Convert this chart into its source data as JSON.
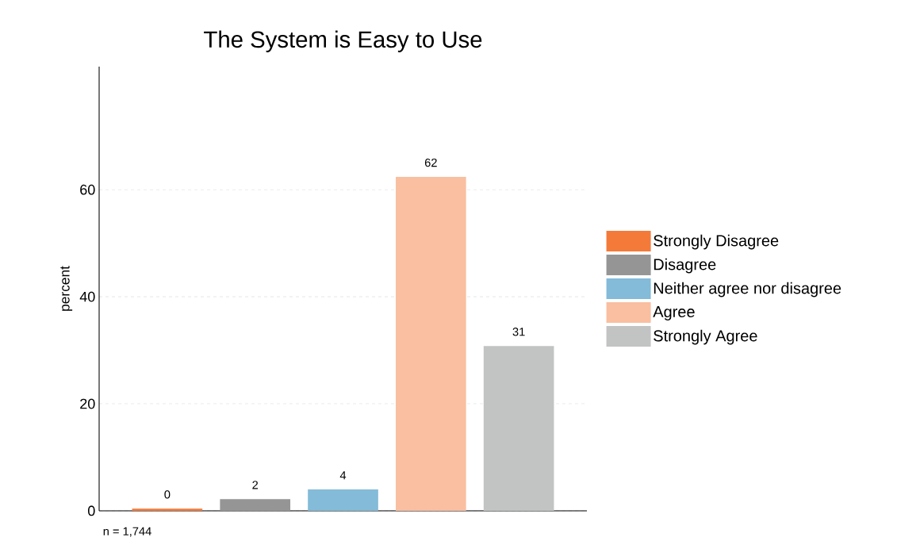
{
  "chart_data": {
    "type": "bar",
    "title": "The System is Easy to Use",
    "ylabel": "percent",
    "categories": [
      null,
      null,
      null,
      null,
      null
    ],
    "series": [
      {
        "name": "Strongly Disagree",
        "color": "#f47a3a",
        "values": [
          0.4,
          null,
          null,
          null,
          null
        ],
        "value_labels": [
          "0",
          null,
          null,
          null,
          null
        ]
      },
      {
        "name": "Disagree",
        "color": "#959596",
        "values": [
          null,
          2.2,
          null,
          null,
          null
        ],
        "value_labels": [
          null,
          "2",
          null,
          null,
          null
        ]
      },
      {
        "name": "Neither agree nor disagree",
        "color": "#83bbd8",
        "values": [
          null,
          null,
          4,
          null,
          null
        ],
        "value_labels": [
          null,
          null,
          "4",
          null,
          null
        ]
      },
      {
        "name": "Agree",
        "color": "#f9bfa0",
        "values": [
          null,
          null,
          null,
          62.4,
          null
        ],
        "value_labels": [
          null,
          null,
          null,
          "62",
          null
        ]
      },
      {
        "name": "Strongly Agree",
        "color": "#c2c3c3",
        "values": [
          null,
          null,
          null,
          null,
          30.8
        ],
        "value_labels": [
          null,
          null,
          null,
          null,
          "31"
        ]
      }
    ],
    "ylim": [
      0,
      83
    ],
    "yticks": [
      0,
      20,
      40,
      60
    ],
    "grid": "y",
    "legend": "right",
    "annotations": [
      "n = 1,744"
    ]
  }
}
